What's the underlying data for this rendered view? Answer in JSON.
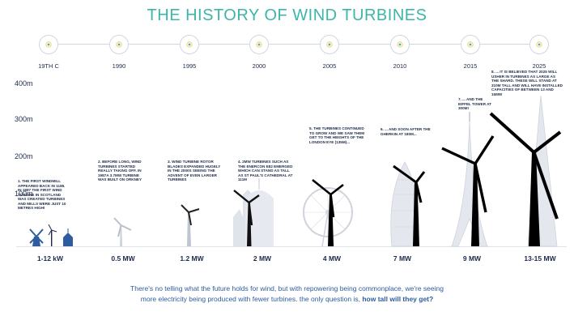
{
  "title": "THE HISTORY OF WIND TURBINES",
  "eras": [
    "19TH C",
    "1990",
    "1995",
    "2000",
    "2005",
    "2010",
    "2015",
    "2025"
  ],
  "y_axis": [
    "400m",
    "300m",
    "200m",
    "100m"
  ],
  "notes": [
    "1. THE FIRST WINDMILL APPEARED BACK IN 1185. IN 1887 THE FIRST WIND TURBINE IN SCOTLAND WAS CREATED TURBINES AND MILLS WERE JUST 10 METRES HIGH!",
    "2. BEFORE LONG, WIND TURBINES STARTED REALLY TAKING OFF. IN 1987A 3.7MW TURBINE WAS BUILT ON ORKNEY",
    "3. WIND TURBINE ROTOR BLADES EXPANDED HUGELY IN THE 2000S SEEING THE ADVENT OF EVEN LARGER TURBINES",
    "4. 2MW TURBINES SUCH AS THE ENERCON E82 EMERGED WHICH CAN STAND AS TALL AS ST PAUL'S CATHEDRAL AT 111M",
    "5. THE TURBINES CONTINUED TO GROW AND WE SAW THEM GET TO THE HEIGHTS OF THE LONDON EYE (135M)...",
    "6. ... AND SOON AFTER THE GHERKIN AT 180M...",
    "7. ... AND THE EIFFEL TOWER AT 300M!",
    "8. ... IT IS BELIEVED THAT 2025 WILL USHER IN TURBINES AS LARGE AS THE SHARD. THESE WILL STAND AT 310M TALL AND WILL HAVE INSTALLED CAPACITIES OF BETWEEN 13 AND 15MW"
  ],
  "powers": [
    "1-12 kW",
    "0.5 MW",
    "1.2 MW",
    "2 MW",
    "4 MW",
    "7 MW",
    "9 MW",
    "13-15 MW"
  ],
  "footer": {
    "line1": "There's no telling what the future holds for wind, but with repowering being commonplace, we're seeing",
    "line2": "more electricity being produced with fewer turbines. the only question is,",
    "question": "how tall will they get?"
  },
  "colors": {
    "title": "#3cb6a8",
    "text": "#1c2a4a",
    "footer": "#2f5c9e",
    "landmark": "#cfd3dc",
    "turbine": "#000000"
  }
}
